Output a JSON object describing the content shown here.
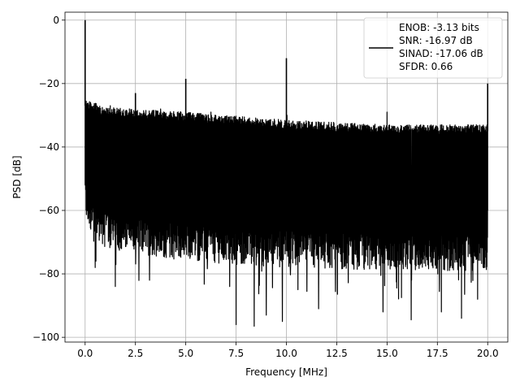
{
  "chart_data": {
    "type": "line",
    "xlabel": "Frequency [MHz]",
    "ylabel": "PSD [dB]",
    "xlim": [
      -1.0,
      21.0
    ],
    "ylim": [
      -101.5,
      2.5
    ],
    "xticks": [
      0.0,
      2.5,
      5.0,
      7.5,
      10.0,
      12.5,
      15.0,
      17.5,
      20.0
    ],
    "xtick_labels": [
      "0.0",
      "2.5",
      "5.0",
      "7.5",
      "10.0",
      "12.5",
      "15.0",
      "17.5",
      "20.0"
    ],
    "yticks": [
      0,
      -20,
      -40,
      -60,
      -80,
      -100
    ],
    "ytick_labels": [
      "0",
      "−20",
      "−40",
      "−60",
      "−80",
      "−100"
    ],
    "grid": true,
    "legend_position": "top-right",
    "series": [
      {
        "name": "ENOB: -3.13 bits\nSNR: -16.97 dB\nSINAD: -17.06 dB\nSFDR: 0.66",
        "legend_lines": [
          "ENOB: -3.13 bits",
          "SNR: -16.97 dB",
          "SINAD: -17.06 dB",
          "SFDR: 0.66"
        ],
        "color": "#000000",
        "noise_floor_top": [
          [
            0.05,
            -25
          ],
          [
            1.0,
            -27.5
          ],
          [
            5.0,
            -29
          ],
          [
            10.0,
            -31.5
          ],
          [
            15.0,
            -33
          ],
          [
            20.0,
            -33
          ]
        ],
        "noise_floor_bottom": [
          [
            0.05,
            -62
          ],
          [
            1.0,
            -70
          ],
          [
            5.0,
            -74
          ],
          [
            10.0,
            -76
          ],
          [
            15.0,
            -77
          ],
          [
            20.0,
            -77
          ]
        ],
        "deep_dips": [
          [
            0.5,
            -78
          ],
          [
            1.5,
            -84
          ],
          [
            3.2,
            -82
          ],
          [
            7.5,
            -96
          ],
          [
            8.4,
            -96.5
          ],
          [
            9.0,
            -93
          ],
          [
            9.8,
            -95
          ],
          [
            11.6,
            -91
          ],
          [
            14.8,
            -92
          ],
          [
            16.2,
            -94.5
          ],
          [
            17.7,
            -92
          ],
          [
            18.7,
            -94
          ],
          [
            19.5,
            -88
          ]
        ],
        "spurs": [
          {
            "x": 0.0,
            "y": 0.0
          },
          {
            "x": 2.5,
            "y": -23
          },
          {
            "x": 5.0,
            "y": -18.5
          },
          {
            "x": 10.0,
            "y": -12
          },
          {
            "x": 20.0,
            "y": -20
          }
        ],
        "small_spurs": [
          {
            "x": 1.25,
            "y": -27
          },
          {
            "x": 3.75,
            "y": -28
          },
          {
            "x": 6.25,
            "y": -29
          },
          {
            "x": 10.03,
            "y": -30
          },
          {
            "x": 15.0,
            "y": -29
          }
        ]
      }
    ]
  }
}
